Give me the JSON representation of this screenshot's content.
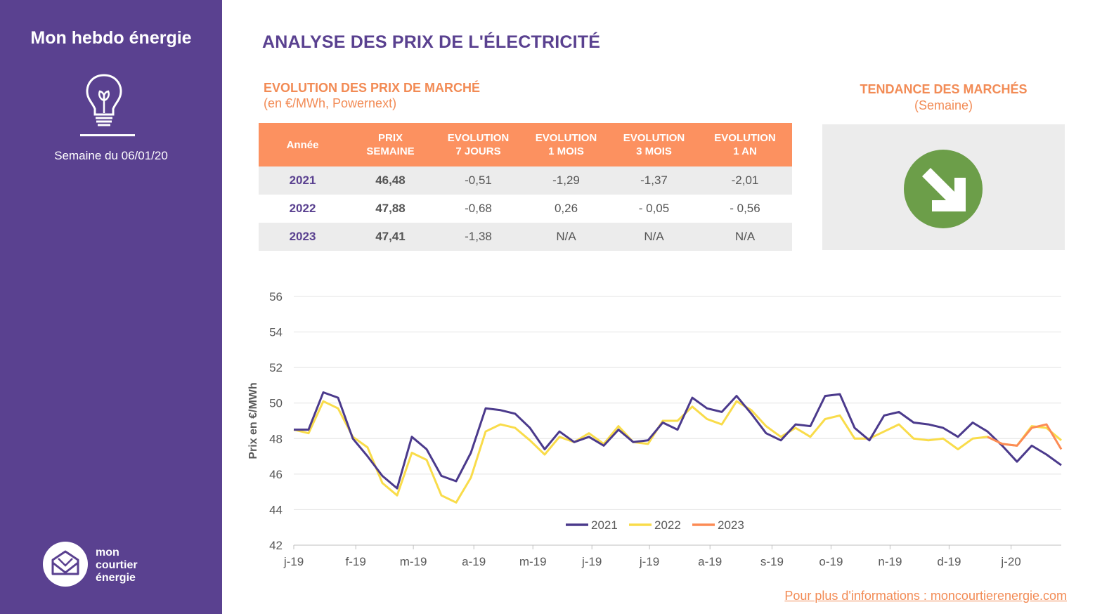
{
  "sidebar": {
    "title": "Mon hebdo énergie",
    "week": "Semaine du 06/01/20",
    "logo_lines": [
      "mon",
      "courtier",
      "énergie"
    ]
  },
  "header": {
    "title": "ANALYSE DES PRIX DE L'ÉLECTRICITÉ"
  },
  "evolution": {
    "title": "EVOLUTION DES PRIX DE MARCHÉ",
    "subtitle": "(en €/MWh, Powernext)"
  },
  "trend": {
    "title": "TENDANCE DES MARCHÉS",
    "subtitle": "(Semaine)",
    "direction": "down-right-arrow-icon",
    "color": "#6c9e49"
  },
  "table": {
    "headers": [
      [
        "Année"
      ],
      [
        "PRIX",
        "SEMAINE"
      ],
      [
        "EVOLUTION",
        "7 JOURS"
      ],
      [
        "EVOLUTION",
        "1 MOIS"
      ],
      [
        "EVOLUTION",
        "3 MOIS"
      ],
      [
        "EVOLUTION",
        "1 AN"
      ]
    ],
    "rows": [
      [
        "2021",
        "46,48",
        "-0,51",
        "-1,29",
        "-1,37",
        "-2,01"
      ],
      [
        "2022",
        "47,88",
        "-0,68",
        "0,26",
        "- 0,05",
        "- 0,56"
      ],
      [
        "2023",
        "47,41",
        "-1,38",
        "N/A",
        "N/A",
        "N/A"
      ]
    ]
  },
  "footer": {
    "link": "Pour plus d'informations : moncourtierenergie.com"
  },
  "colors": {
    "purple": "#5a4190",
    "orange": "#f28b55",
    "yellow": "#f9dc4a",
    "green": "#6c9e49"
  },
  "chart_data": {
    "type": "line",
    "ylabel": "Prix en €/MWh",
    "ylim": [
      42,
      56
    ],
    "yticks": [
      42,
      44,
      46,
      48,
      50,
      52,
      54,
      56
    ],
    "grid": true,
    "legend": "bottom-center",
    "x_tick_labels": [
      "j-19",
      "f-19",
      "m-19",
      "a-19",
      "m-19",
      "j-19",
      "j-19",
      "a-19",
      "s-19",
      "o-19",
      "n-19",
      "d-19",
      "j-20"
    ],
    "x_tick_week_index": [
      0,
      4.2,
      8.1,
      12.2,
      16.2,
      20.2,
      24.1,
      28.2,
      32.4,
      36.4,
      40.4,
      44.4,
      48.6
    ],
    "series": [
      {
        "name": "2021",
        "color": "#4b3a8c",
        "values": [
          48.5,
          48.5,
          50.6,
          50.3,
          48.0,
          47.0,
          45.9,
          45.2,
          48.1,
          47.4,
          45.9,
          45.6,
          47.2,
          49.7,
          49.6,
          49.4,
          48.6,
          47.4,
          48.4,
          47.8,
          48.1,
          47.6,
          48.5,
          47.8,
          47.9,
          48.9,
          48.5,
          50.3,
          49.7,
          49.5,
          50.4,
          49.4,
          48.3,
          47.9,
          48.8,
          48.7,
          50.4,
          50.5,
          48.6,
          47.9,
          49.3,
          49.5,
          48.9,
          48.8,
          48.6,
          48.1,
          48.9,
          48.4,
          47.6,
          46.7,
          47.6,
          47.1,
          46.5
        ]
      },
      {
        "name": "2022",
        "color": "#f9dc4a",
        "values": [
          48.5,
          48.3,
          50.1,
          49.7,
          48.1,
          47.5,
          45.5,
          44.8,
          47.2,
          46.8,
          44.8,
          44.4,
          45.8,
          48.4,
          48.8,
          48.6,
          47.9,
          47.1,
          48.1,
          47.8,
          48.3,
          47.7,
          48.7,
          47.8,
          47.7,
          49.0,
          49.0,
          49.8,
          49.1,
          48.8,
          50.1,
          49.6,
          48.7,
          48.1,
          48.6,
          48.1,
          49.1,
          49.3,
          48.0,
          48.0,
          48.4,
          48.8,
          48.0,
          47.9,
          48.0,
          47.4,
          48.0,
          48.1,
          47.7,
          47.6,
          48.7,
          48.6,
          47.9
        ]
      },
      {
        "name": "2023",
        "color": "#fc8b55",
        "start_index": 47,
        "values": [
          48.1,
          47.7,
          47.6,
          48.6,
          48.8,
          47.4
        ]
      }
    ]
  }
}
